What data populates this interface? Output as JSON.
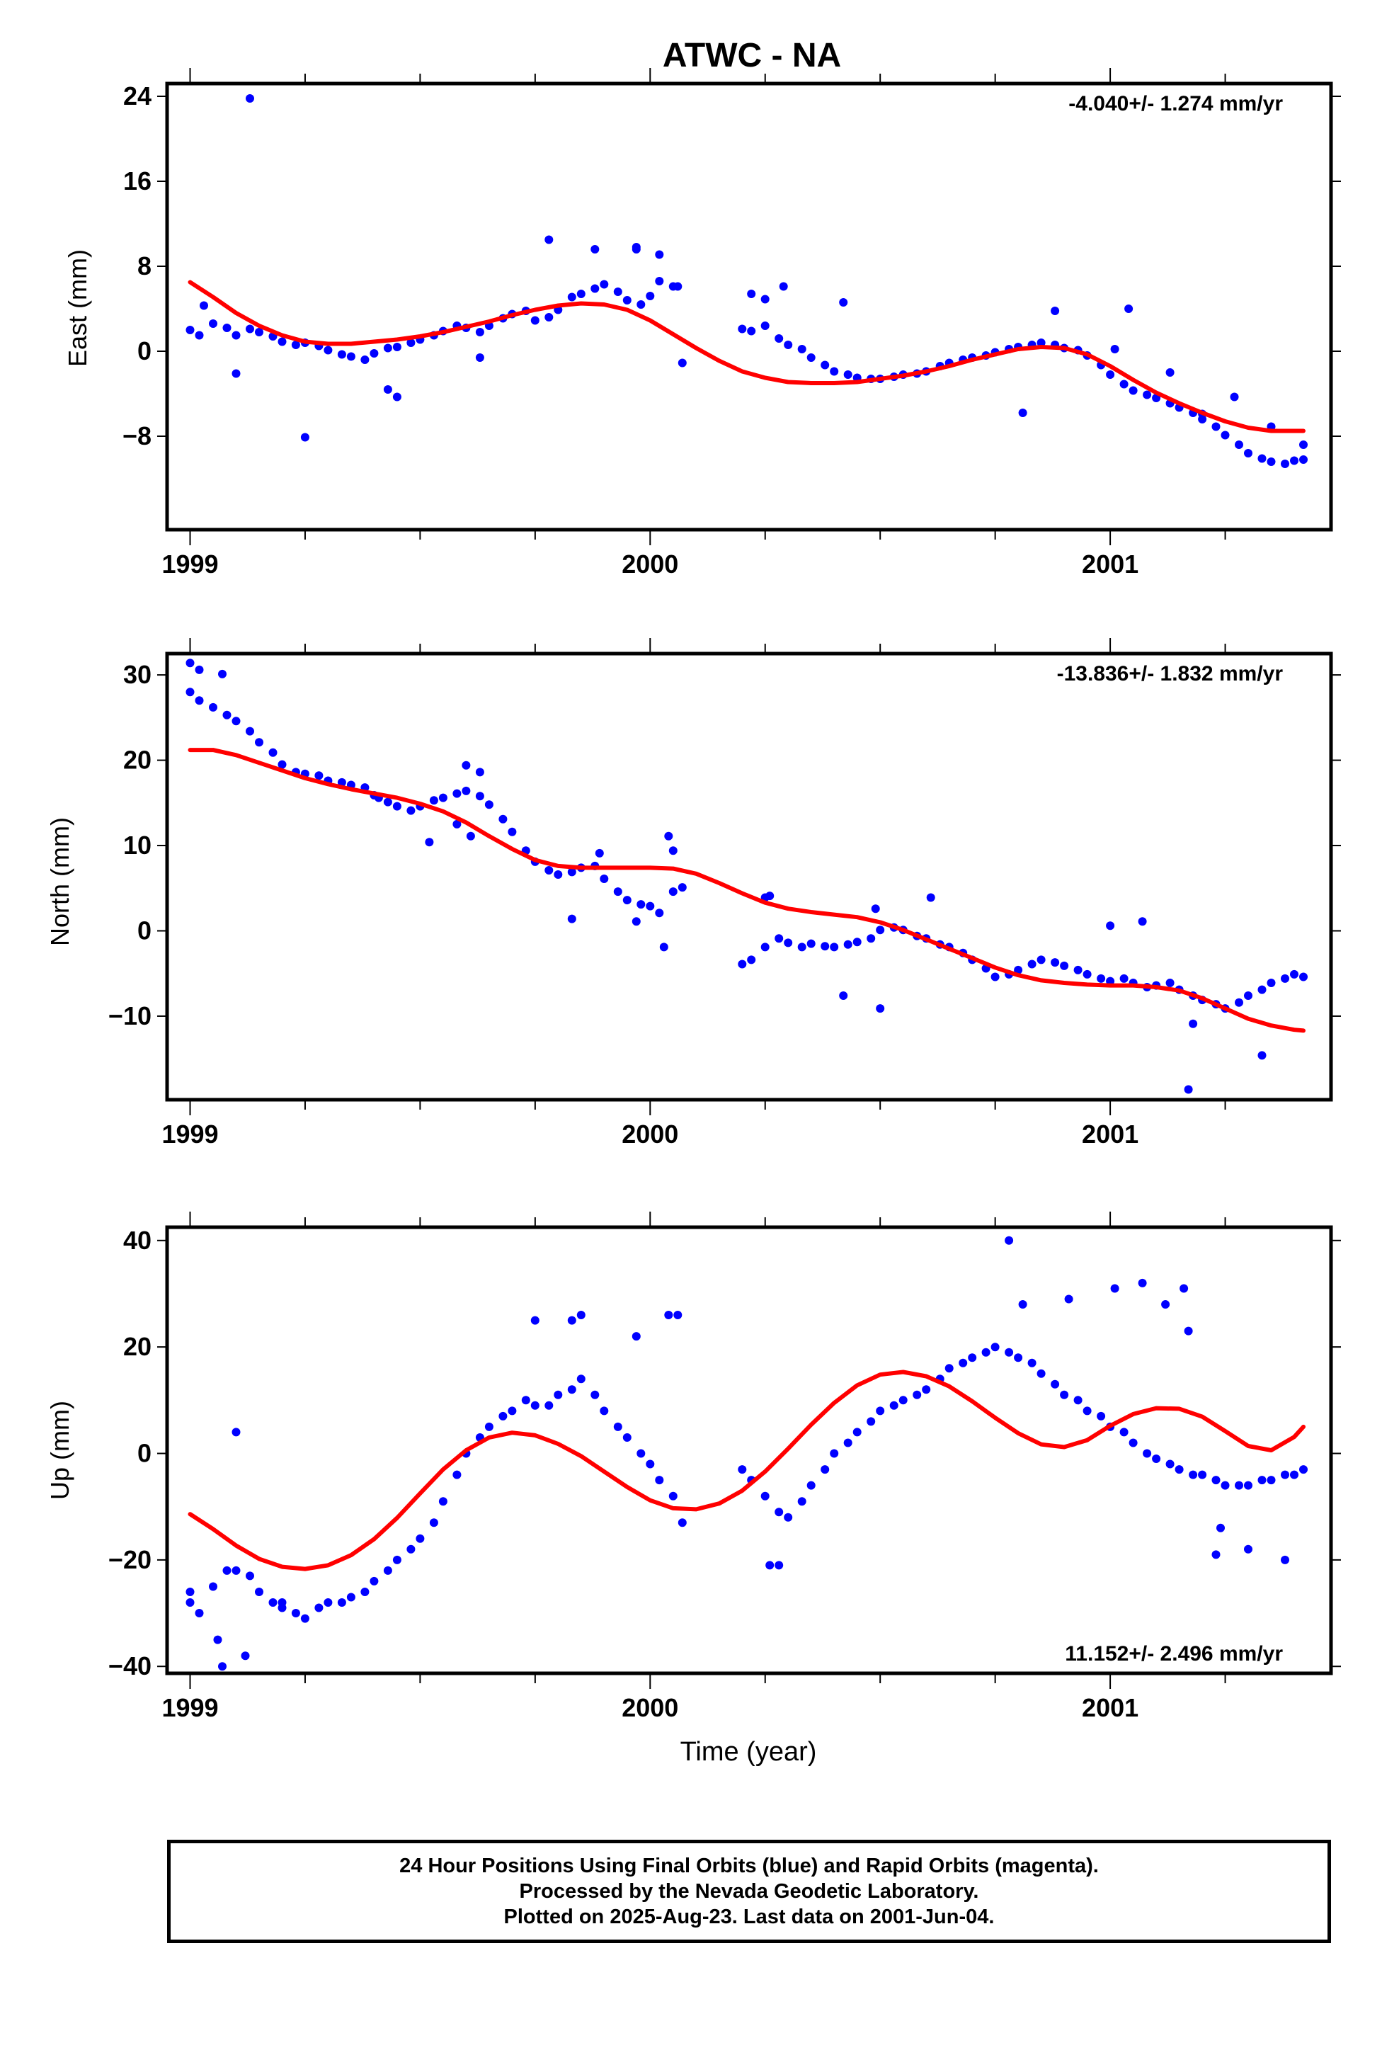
{
  "figure": {
    "title": "ATWC - NA",
    "xlabel": "Time (year)"
  },
  "colors": {
    "points": "#0000ff",
    "fit": "#ff0000",
    "frame": "#000000"
  },
  "footer": {
    "line1": "24 Hour Positions Using Final Orbits (blue) and Rapid Orbits (magenta).",
    "line2": "Processed by the Nevada Geodetic Laboratory.",
    "line3": "Plotted on 2025-Aug-23. Last data on 2001-Jun-04."
  },
  "chart_data": [
    {
      "type": "scatter",
      "ylabel": "East (mm)",
      "rate": "-4.040+/- 1.274 mm/yr",
      "xlim": [
        1998.95,
        2001.48
      ],
      "ylim": [
        -16.8,
        25.2
      ],
      "xticks": [
        1999,
        2000,
        2001
      ],
      "xticklabels": [
        "1999",
        "2000",
        "2001"
      ],
      "yticks": [
        24,
        16,
        8,
        0,
        -8
      ],
      "yticklabels": [
        "24",
        "16",
        "8",
        "0",
        "−8"
      ],
      "points_x": [
        1999.0,
        1999.02,
        1999.05,
        1999.08,
        1999.1,
        1999.13,
        1999.15,
        1999.18,
        1999.2,
        1999.23,
        1999.25,
        1999.28,
        1999.3,
        1999.33,
        1999.35,
        1999.38,
        1999.4,
        1999.43,
        1999.45,
        1999.48,
        1999.5,
        1999.53,
        1999.55,
        1999.58,
        1999.6,
        1999.63,
        1999.65,
        1999.68,
        1999.7,
        1999.73,
        1999.75,
        1999.78,
        1999.8,
        1999.83,
        1999.85,
        1999.88,
        1999.9,
        1999.93,
        1999.95,
        1999.98,
        2000.0,
        2000.02,
        2000.05,
        2000.07,
        2000.2,
        2000.22,
        2000.25,
        2000.28,
        2000.3,
        2000.33,
        2000.35,
        2000.38,
        2000.4,
        2000.43,
        2000.45,
        2000.48,
        2000.5,
        2000.53,
        2000.55,
        2000.58,
        2000.6,
        2000.63,
        2000.65,
        2000.68,
        2000.7,
        2000.73,
        2000.75,
        2000.78,
        2000.8,
        2000.83,
        2000.85,
        2000.88,
        2000.9,
        2000.93,
        2000.95,
        2000.98,
        2001.0,
        2001.03,
        2001.05,
        2001.08,
        2001.1,
        2001.13,
        2001.15,
        2001.18,
        2001.2,
        2001.23,
        2001.25,
        2001.28,
        2001.3,
        2001.33,
        2001.35,
        2001.38,
        2001.4,
        2001.42,
        2001.13,
        2001.27,
        2001.2,
        2001.35,
        2001.42,
        1999.25,
        1999.13,
        1999.03,
        1999.78,
        1999.88,
        1999.97,
        2000.02,
        2000.06,
        2000.42,
        2000.29,
        2001.01,
        2001.04,
        1999.45,
        1999.63,
        2000.22,
        2000.25,
        2000.81,
        2000.88,
        1999.1,
        1999.43,
        1999.97
      ],
      "points_y": [
        2,
        1.5,
        2.6,
        2.2,
        1.5,
        2.1,
        1.8,
        1.4,
        0.9,
        0.6,
        0.8,
        0.5,
        0.1,
        -0.3,
        -0.5,
        -0.8,
        -0.2,
        0.3,
        0.4,
        0.8,
        1.1,
        1.5,
        1.9,
        2.4,
        2.2,
        1.8,
        2.4,
        3.1,
        3.5,
        3.8,
        2.9,
        3.2,
        3.9,
        5.1,
        5.4,
        5.9,
        6.3,
        5.6,
        4.8,
        4.4,
        5.2,
        6.6,
        6.1,
        -1.1,
        2.1,
        1.9,
        2.4,
        1.2,
        0.6,
        0.2,
        -0.6,
        -1.3,
        -1.9,
        -2.2,
        -2.5,
        -2.6,
        -2.6,
        -2.4,
        -2.2,
        -2.1,
        -1.9,
        -1.4,
        -1.1,
        -0.8,
        -0.6,
        -0.4,
        -0.1,
        0.2,
        0.4,
        0.6,
        0.8,
        0.6,
        0.3,
        0.1,
        -0.4,
        -1.3,
        -2.2,
        -3.1,
        -3.7,
        -4.1,
        -4.4,
        -4.9,
        -5.3,
        -5.8,
        -6.4,
        -7.1,
        -7.9,
        -8.8,
        -9.6,
        -10.1,
        -10.4,
        -10.6,
        -10.3,
        -10.2,
        -2,
        -4.3,
        -5.9,
        -7.1,
        -8.8,
        -8.1,
        23.8,
        4.3,
        10.5,
        9.6,
        9.8,
        9.1,
        6.1,
        4.6,
        6.1,
        0.2,
        4,
        -4.3,
        -0.6,
        5.4,
        4.9,
        -5.8,
        3.8,
        -2.1,
        -3.6,
        9.6
      ],
      "fit_x": [
        1999.0,
        1999.05,
        1999.1,
        1999.15,
        1999.2,
        1999.25,
        1999.3,
        1999.35,
        1999.4,
        1999.45,
        1999.5,
        1999.55,
        1999.6,
        1999.65,
        1999.7,
        1999.75,
        1999.8,
        1999.85,
        1999.9,
        1999.95,
        2000.0,
        2000.05,
        2000.1,
        2000.15,
        2000.2,
        2000.25,
        2000.3,
        2000.35,
        2000.4,
        2000.45,
        2000.5,
        2000.55,
        2000.6,
        2000.65,
        2000.7,
        2000.75,
        2000.8,
        2000.85,
        2000.9,
        2000.95,
        2001.0,
        2001.05,
        2001.1,
        2001.15,
        2001.2,
        2001.25,
        2001.3,
        2001.35,
        2001.4,
        2001.42
      ],
      "fit_y": [
        6.5,
        5.1,
        3.6,
        2.4,
        1.5,
        0.9,
        0.7,
        0.7,
        0.9,
        1.1,
        1.4,
        1.8,
        2.3,
        2.8,
        3.4,
        3.9,
        4.3,
        4.5,
        4.4,
        3.9,
        2.9,
        1.6,
        0.3,
        -0.9,
        -1.9,
        -2.5,
        -2.9,
        -3.0,
        -3.0,
        -2.9,
        -2.6,
        -2.3,
        -1.9,
        -1.4,
        -0.8,
        -0.3,
        0.2,
        0.4,
        0.3,
        -0.3,
        -1.4,
        -2.7,
        -3.9,
        -4.9,
        -5.8,
        -6.6,
        -7.2,
        -7.5,
        -7.5,
        -7.5
      ]
    },
    {
      "type": "scatter",
      "ylabel": "North (mm)",
      "rate": "-13.836+/- 1.832 mm/yr",
      "xlim": [
        1998.95,
        2001.48
      ],
      "ylim": [
        -19.8,
        32.5
      ],
      "xticks": [
        1999,
        2000,
        2001
      ],
      "xticklabels": [
        "1999",
        "2000",
        "2001"
      ],
      "yticks": [
        30,
        20,
        10,
        0,
        -10
      ],
      "yticklabels": [
        "30",
        "20",
        "10",
        "0",
        "−10"
      ],
      "points_x": [
        1999.0,
        1999.02,
        1999.05,
        1999.08,
        1999.1,
        1999.13,
        1999.15,
        1999.18,
        1999.2,
        1999.23,
        1999.25,
        1999.28,
        1999.3,
        1999.33,
        1999.35,
        1999.38,
        1999.4,
        1999.43,
        1999.45,
        1999.48,
        1999.5,
        1999.53,
        1999.55,
        1999.58,
        1999.6,
        1999.63,
        1999.65,
        1999.68,
        1999.7,
        1999.73,
        1999.75,
        1999.78,
        1999.8,
        1999.83,
        1999.85,
        1999.88,
        1999.9,
        1999.93,
        1999.95,
        1999.98,
        2000.0,
        2000.02,
        2000.05,
        2000.07,
        2000.2,
        2000.22,
        2000.25,
        2000.28,
        2000.3,
        2000.33,
        2000.35,
        2000.38,
        2000.4,
        2000.43,
        2000.45,
        2000.48,
        2000.5,
        2000.53,
        2000.55,
        2000.58,
        2000.6,
        2000.63,
        2000.65,
        2000.68,
        2000.7,
        2000.73,
        2000.75,
        2000.78,
        2000.8,
        2000.83,
        2000.85,
        2000.88,
        2000.9,
        2000.93,
        2000.95,
        2000.98,
        2001.0,
        2001.03,
        2001.05,
        2001.08,
        2001.1,
        2001.13,
        2001.15,
        2001.18,
        2001.2,
        2001.23,
        2001.25,
        2001.28,
        2001.3,
        2001.33,
        2001.35,
        2001.38,
        2001.4,
        2001.42,
        1999.0,
        1999.02,
        1999.07,
        1999.6,
        1999.63,
        1999.58,
        1999.52,
        1999.89,
        1999.97,
        2000.04,
        2000.05,
        2000.03,
        2000.25,
        2000.26,
        2000.5,
        2000.49,
        2000.61,
        2001.0,
        2001.07,
        2001.17,
        2001.18,
        2001.33,
        1999.83,
        1999.61,
        1999.41,
        2000.42
      ],
      "points_y": [
        28,
        27,
        26.2,
        25.3,
        24.6,
        23.4,
        22.1,
        20.9,
        19.5,
        18.6,
        18.4,
        18.2,
        17.6,
        17.4,
        17.1,
        16.8,
        15.9,
        15.1,
        14.6,
        14.1,
        14.6,
        15.3,
        15.6,
        16.1,
        16.4,
        15.8,
        14.8,
        13.1,
        11.6,
        9.4,
        8.1,
        7.1,
        6.6,
        6.9,
        7.4,
        7.6,
        6.1,
        4.6,
        3.6,
        3.1,
        2.9,
        2.1,
        4.6,
        5.1,
        -3.9,
        -3.4,
        -1.9,
        -0.9,
        -1.4,
        -1.9,
        -1.5,
        -1.8,
        -1.9,
        -1.6,
        -1.3,
        -0.9,
        0.1,
        0.4,
        0.1,
        -0.6,
        -0.9,
        -1.6,
        -1.9,
        -2.6,
        -3.4,
        -4.4,
        -5.4,
        -5.1,
        -4.6,
        -3.9,
        -3.4,
        -3.7,
        -4.1,
        -4.6,
        -5.1,
        -5.6,
        -5.9,
        -5.6,
        -6.1,
        -6.6,
        -6.4,
        -6.1,
        -6.9,
        -7.6,
        -8.1,
        -8.6,
        -9.1,
        -8.4,
        -7.6,
        -6.9,
        -6.1,
        -5.6,
        -5.1,
        -5.4,
        31.4,
        30.6,
        30.1,
        19.4,
        18.6,
        12.5,
        10.4,
        9.1,
        1.1,
        11.1,
        9.4,
        -1.9,
        3.9,
        4.1,
        -9.1,
        2.6,
        3.9,
        0.6,
        1.1,
        -18.6,
        -10.9,
        -14.6,
        1.4,
        11.1,
        15.6,
        -7.6
      ],
      "fit_x": [
        1999.0,
        1999.05,
        1999.1,
        1999.15,
        1999.2,
        1999.25,
        1999.3,
        1999.35,
        1999.4,
        1999.45,
        1999.5,
        1999.55,
        1999.6,
        1999.65,
        1999.7,
        1999.75,
        1999.8,
        1999.85,
        1999.9,
        1999.95,
        2000.0,
        2000.05,
        2000.1,
        2000.15,
        2000.2,
        2000.25,
        2000.3,
        2000.35,
        2000.4,
        2000.45,
        2000.5,
        2000.55,
        2000.6,
        2000.65,
        2000.7,
        2000.75,
        2000.8,
        2000.85,
        2000.9,
        2000.95,
        2001.0,
        2001.05,
        2001.1,
        2001.15,
        2001.2,
        2001.25,
        2001.3,
        2001.35,
        2001.4,
        2001.42
      ],
      "fit_y": [
        21.2,
        21.2,
        20.6,
        19.7,
        18.8,
        17.9,
        17.2,
        16.6,
        16.1,
        15.6,
        14.9,
        14.0,
        12.7,
        11.1,
        9.6,
        8.3,
        7.6,
        7.4,
        7.4,
        7.4,
        7.4,
        7.3,
        6.7,
        5.6,
        4.4,
        3.3,
        2.6,
        2.2,
        1.9,
        1.6,
        1.0,
        0.1,
        -1.0,
        -2.1,
        -3.2,
        -4.3,
        -5.2,
        -5.8,
        -6.1,
        -6.3,
        -6.4,
        -6.4,
        -6.6,
        -7.0,
        -7.9,
        -9.1,
        -10.3,
        -11.1,
        -11.6,
        -11.7
      ]
    },
    {
      "type": "scatter",
      "ylabel": "Up (mm)",
      "rate": "11.152+/- 2.496 mm/yr",
      "xlim": [
        1998.95,
        2001.48
      ],
      "ylim": [
        -41.3,
        42.5
      ],
      "xticks": [
        1999,
        2000,
        2001
      ],
      "xticklabels": [
        "1999",
        "2000",
        "2001"
      ],
      "yticks": [
        40,
        20,
        0,
        -20,
        -40
      ],
      "yticklabels": [
        "40",
        "20",
        "0",
        "−20",
        "−40"
      ],
      "points_x": [
        1999.0,
        1999.02,
        1999.05,
        1999.08,
        1999.1,
        1999.13,
        1999.15,
        1999.18,
        1999.2,
        1999.23,
        1999.25,
        1999.28,
        1999.3,
        1999.33,
        1999.35,
        1999.38,
        1999.4,
        1999.43,
        1999.45,
        1999.48,
        1999.5,
        1999.53,
        1999.55,
        1999.58,
        1999.6,
        1999.63,
        1999.65,
        1999.68,
        1999.7,
        1999.73,
        1999.75,
        1999.78,
        1999.8,
        1999.83,
        1999.85,
        1999.88,
        1999.9,
        1999.93,
        1999.95,
        1999.98,
        2000.0,
        2000.02,
        2000.05,
        2000.07,
        2000.2,
        2000.22,
        2000.25,
        2000.28,
        2000.3,
        2000.33,
        2000.35,
        2000.38,
        2000.4,
        2000.43,
        2000.45,
        2000.48,
        2000.5,
        2000.53,
        2000.55,
        2000.58,
        2000.6,
        2000.63,
        2000.65,
        2000.68,
        2000.7,
        2000.73,
        2000.75,
        2000.78,
        2000.8,
        2000.83,
        2000.85,
        2000.88,
        2000.9,
        2000.93,
        2000.95,
        2000.98,
        2001.0,
        2001.03,
        2001.05,
        2001.08,
        2001.1,
        2001.13,
        2001.15,
        2001.18,
        2001.2,
        2001.23,
        2001.25,
        2001.28,
        2001.3,
        2001.33,
        2001.35,
        2001.38,
        2001.4,
        2001.42,
        1999.07,
        1999.12,
        1999.1,
        1999.0,
        1999.06,
        1999.2,
        1999.75,
        1999.83,
        1999.85,
        1999.97,
        2000.04,
        2000.06,
        2000.26,
        2000.28,
        2000.78,
        2000.81,
        2000.91,
        2001.01,
        2001.07,
        2001.12,
        2001.16,
        2001.23,
        2001.24,
        2001.38,
        2001.3,
        2001.17
      ],
      "points_y": [
        -28,
        -30,
        -25,
        -22,
        -22,
        -23,
        -26,
        -28,
        -29,
        -30,
        -31,
        -29,
        -28,
        -28,
        -27,
        -26,
        -24,
        -22,
        -20,
        -18,
        -16,
        -13,
        -9,
        -4,
        0,
        3,
        5,
        7,
        8,
        10,
        9,
        9,
        11,
        12,
        14,
        11,
        8,
        5,
        3,
        0,
        -2,
        -5,
        -8,
        -13,
        -3,
        -5,
        -8,
        -11,
        -12,
        -9,
        -6,
        -3,
        0,
        2,
        4,
        6,
        8,
        9,
        10,
        11,
        12,
        14,
        16,
        17,
        18,
        19,
        20,
        19,
        18,
        17,
        15,
        13,
        11,
        10,
        8,
        7,
        5,
        4,
        2,
        0,
        -1,
        -2,
        -3,
        -4,
        -4,
        -5,
        -6,
        -6,
        -6,
        -5,
        -5,
        -4,
        -4,
        -3,
        -40,
        -38,
        4,
        -26,
        -35,
        -28,
        25,
        25,
        26,
        22,
        26,
        26,
        -21,
        -21,
        40,
        28,
        29,
        31,
        32,
        28,
        31,
        -19,
        -14,
        -20,
        -18,
        23
      ],
      "fit_x": [
        1999.0,
        1999.05,
        1999.1,
        1999.15,
        1999.2,
        1999.25,
        1999.3,
        1999.35,
        1999.4,
        1999.45,
        1999.5,
        1999.55,
        1999.6,
        1999.65,
        1999.7,
        1999.75,
        1999.8,
        1999.85,
        1999.9,
        1999.95,
        2000.0,
        2000.05,
        2000.1,
        2000.15,
        2000.2,
        2000.25,
        2000.3,
        2000.35,
        2000.4,
        2000.45,
        2000.5,
        2000.55,
        2000.6,
        2000.65,
        2000.7,
        2000.75,
        2000.8,
        2000.85,
        2000.9,
        2000.95,
        2001.0,
        2001.05,
        2001.1,
        2001.15,
        2001.2,
        2001.25,
        2001.3,
        2001.35,
        2001.4,
        2001.42
      ],
      "fit_y": [
        -11.4,
        -14.2,
        -17.3,
        -19.8,
        -21.3,
        -21.7,
        -21.0,
        -19.1,
        -16.1,
        -12.1,
        -7.5,
        -3.0,
        0.6,
        3.0,
        3.9,
        3.4,
        1.8,
        -0.5,
        -3.4,
        -6.3,
        -8.8,
        -10.3,
        -10.5,
        -9.4,
        -7.0,
        -3.4,
        0.9,
        5.4,
        9.5,
        12.8,
        14.8,
        15.3,
        14.5,
        12.6,
        9.8,
        6.7,
        3.8,
        1.7,
        1.2,
        2.5,
        5.2,
        7.4,
        8.5,
        8.4,
        6.9,
        4.2,
        1.4,
        0.6,
        3.1,
        5.0
      ]
    }
  ]
}
